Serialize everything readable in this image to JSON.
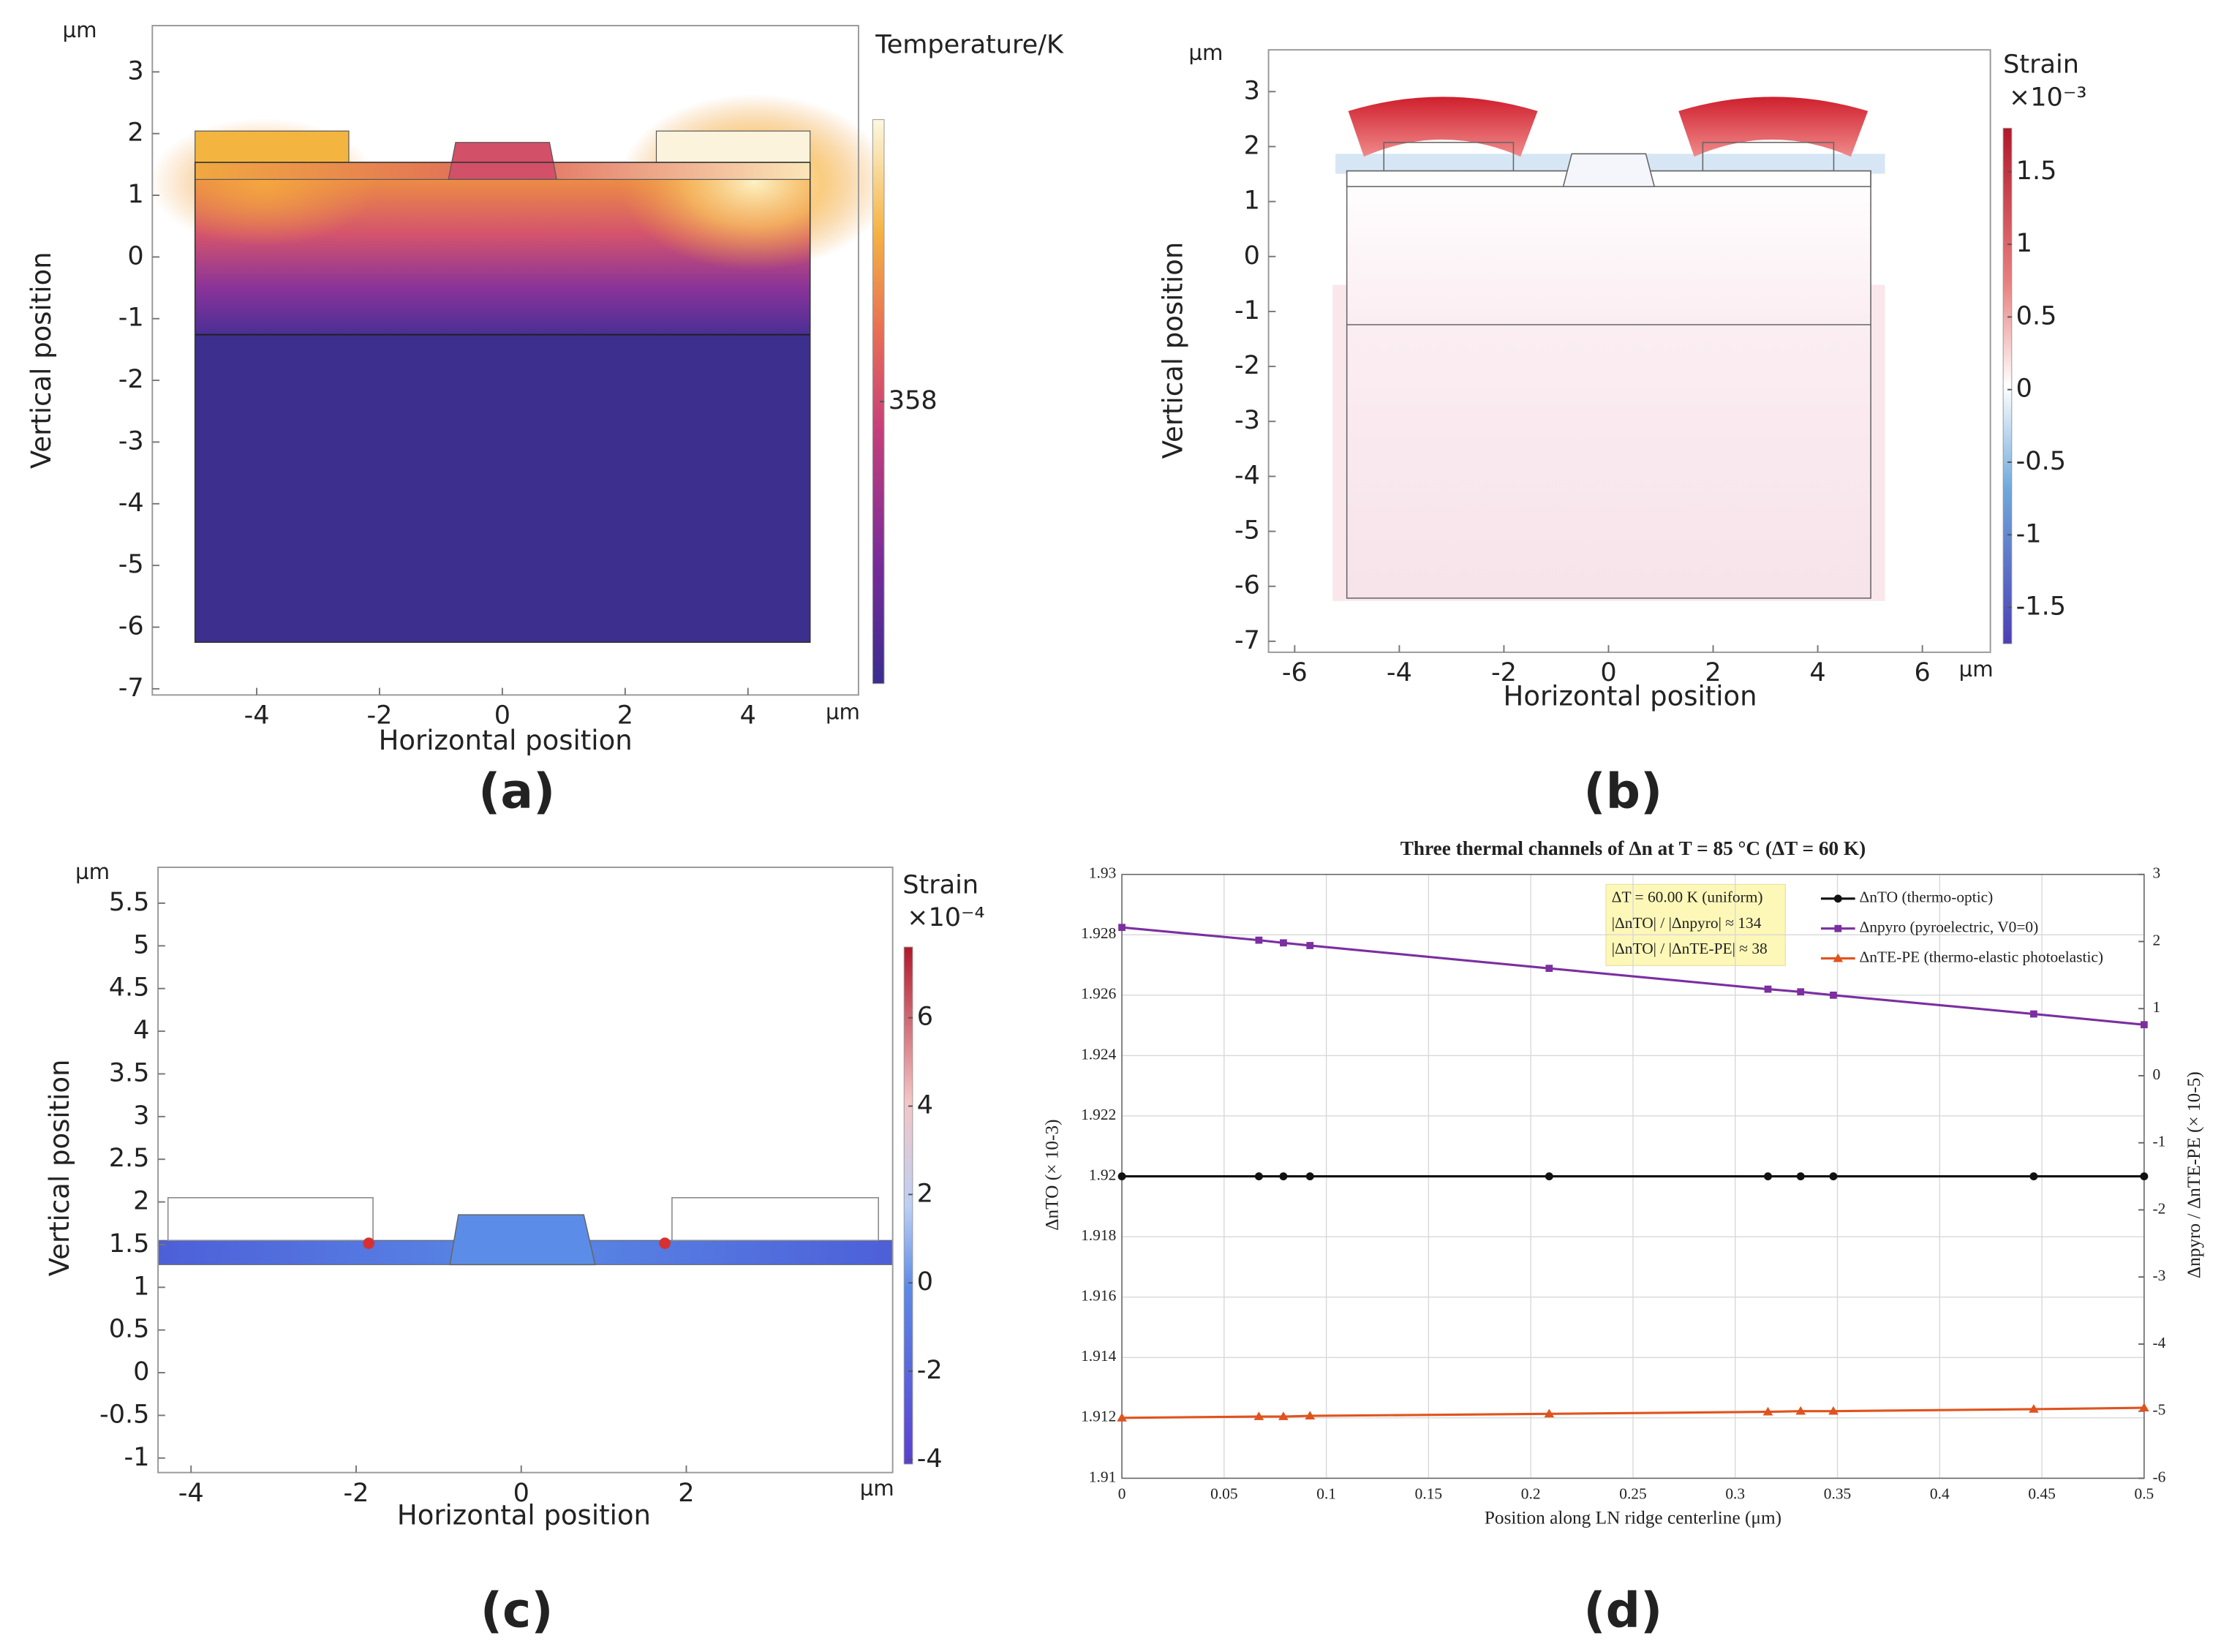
{
  "chart_data": [
    {
      "type": "field",
      "panel_label": "(a)",
      "colorbar_title": "Temperature/K",
      "xlabel": "Horizontal position",
      "ylabel": "Vertical position",
      "unit": "µm",
      "xlim": [
        -5.7,
        5.8
      ],
      "xticks": [
        -4,
        -2,
        0,
        2,
        4
      ],
      "ylim": [
        -7.1,
        3.75
      ],
      "yticks": [
        3,
        2,
        1,
        0,
        -1,
        -2,
        -3,
        -4,
        -5,
        -6,
        -7
      ],
      "clim": [
        345,
        371
      ],
      "cticks": [
        358
      ]
    },
    {
      "type": "field",
      "panel_label": "(b)",
      "colorbar_title": "Strain",
      "colorbar_scale": "×10⁻³",
      "xlabel": "Horizontal position",
      "ylabel": "Vertical position",
      "unit": "µm",
      "xlim": [
        -6.5,
        7.3
      ],
      "xticks": [
        -6,
        -4,
        -2,
        0,
        2,
        4,
        6
      ],
      "ylim": [
        -7.2,
        3.76
      ],
      "yticks": [
        3,
        2,
        1,
        0,
        -1,
        -2,
        -3,
        -4,
        -5,
        -6,
        -7
      ],
      "clim": [
        -1.75,
        1.8
      ],
      "cticks": [
        1.5,
        1,
        0.5,
        0,
        -0.5,
        -1,
        -1.5
      ]
    },
    {
      "type": "field",
      "panel_label": "(c)",
      "colorbar_title": "Strain",
      "colorbar_scale": "×10⁻⁴",
      "xlabel": "Horizontal position",
      "ylabel": "Vertical position",
      "unit": "µm",
      "xlim": [
        -4.4,
        4.5
      ],
      "xticks": [
        -4,
        -2,
        0,
        2
      ],
      "ylim": [
        -1.17,
        5.92
      ],
      "yticks": [
        5.5,
        5,
        4.5,
        4,
        3.5,
        3,
        2.5,
        2,
        1.5,
        1,
        0.5,
        0,
        -0.5,
        -1
      ],
      "clim": [
        -4.1,
        7.6
      ],
      "cticks": [
        6,
        4,
        2,
        0,
        -2,
        -4
      ]
    },
    {
      "type": "line",
      "panel_label": "(d)",
      "title": "Three thermal channels of Δn at T = 85 °C (ΔT = 60 K)",
      "xlabel": "Position along LN ridge centerline (μm)",
      "ylabel": "ΔnTO  (× 10-3)",
      "y2label": "Δnpyro  /  ΔnTE-PE  (× 10-5)",
      "annotation": [
        "ΔT = 60.00 K (uniform)",
        "|ΔnTO| / |Δnpyro| ≈ 134",
        "|ΔnTO| / |ΔnTE-PE| ≈ 38"
      ],
      "grid": true,
      "legend": "upper right",
      "xlim": [
        0,
        0.5
      ],
      "xticks": [
        0,
        0.05,
        0.1,
        0.15,
        0.2,
        0.25,
        0.3,
        0.35,
        0.4,
        0.45,
        0.5
      ],
      "ylim": [
        1.91,
        1.93
      ],
      "yticks": [
        1.93,
        1.928,
        1.926,
        1.924,
        1.922,
        1.92,
        1.918,
        1.916,
        1.914,
        1.912,
        1.91
      ],
      "y2lim": [
        -6,
        3
      ],
      "y2ticks": [
        3,
        2,
        1,
        0,
        -1,
        -2,
        -3,
        -4,
        -5,
        -6
      ],
      "x": [
        0,
        0.067,
        0.079,
        0.092,
        0.209,
        0.316,
        0.332,
        0.348,
        0.446,
        0.5
      ],
      "series": [
        {
          "name": "ΔnTO  (thermo-optic)",
          "color": "#111111",
          "marker": "circle",
          "values": [
            1.92,
            1.92,
            1.92,
            1.92,
            1.92,
            1.92,
            1.92,
            1.92,
            1.92,
            1.92
          ]
        },
        {
          "name": "Δnpyro  (pyroelectric, V0=0)",
          "color": "#7b2fa0",
          "marker": "square",
          "axis": "y2",
          "values": [
            2.21,
            2.02,
            1.98,
            1.94,
            1.6,
            1.29,
            1.25,
            1.2,
            0.92,
            0.76
          ]
        },
        {
          "name": "ΔnTE-PE  (thermo-elastic photoelastic)",
          "color": "#e0531f",
          "marker": "triangle",
          "axis": "y2",
          "values": [
            -5.1,
            -5.08,
            -5.08,
            -5.07,
            -5.04,
            -5.01,
            -5.0,
            -5.0,
            -4.97,
            -4.95
          ]
        }
      ]
    }
  ]
}
